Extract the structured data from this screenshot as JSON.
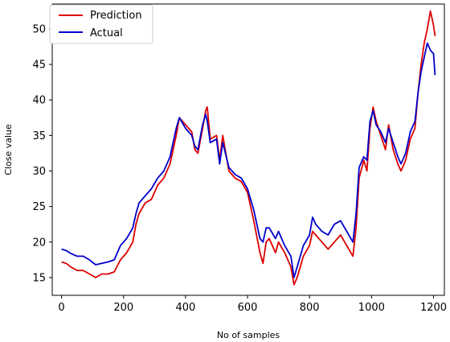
{
  "chart_data": {
    "type": "line",
    "title": "",
    "xlabel": "No of samples",
    "ylabel": "Close value",
    "xlim": [
      -30,
      1235
    ],
    "ylim": [
      12.5,
      53.5
    ],
    "xticks": [
      0,
      200,
      400,
      600,
      800,
      1000,
      1200
    ],
    "yticks": [
      15,
      20,
      25,
      30,
      35,
      40,
      45,
      50
    ],
    "grid": false,
    "legend_position": "top-left",
    "series": [
      {
        "name": "Prediction",
        "color": "#dd0000",
        "points": [
          [
            0,
            17.2
          ],
          [
            15,
            17.0
          ],
          [
            30,
            16.5
          ],
          [
            50,
            16.0
          ],
          [
            70,
            16.0
          ],
          [
            90,
            15.5
          ],
          [
            110,
            15.0
          ],
          [
            130,
            15.5
          ],
          [
            150,
            15.5
          ],
          [
            170,
            15.8
          ],
          [
            190,
            17.5
          ],
          [
            210,
            18.5
          ],
          [
            230,
            20.0
          ],
          [
            240,
            22.5
          ],
          [
            250,
            24.0
          ],
          [
            270,
            25.5
          ],
          [
            290,
            26.0
          ],
          [
            310,
            28.0
          ],
          [
            330,
            29.0
          ],
          [
            350,
            31.0
          ],
          [
            370,
            35.0
          ],
          [
            380,
            37.5
          ],
          [
            400,
            36.5
          ],
          [
            420,
            35.5
          ],
          [
            430,
            33.0
          ],
          [
            440,
            32.5
          ],
          [
            455,
            36.0
          ],
          [
            465,
            38.5
          ],
          [
            470,
            39.0
          ],
          [
            480,
            34.5
          ],
          [
            500,
            35.0
          ],
          [
            510,
            31.5
          ],
          [
            520,
            35.0
          ],
          [
            540,
            30.0
          ],
          [
            560,
            29.0
          ],
          [
            580,
            28.5
          ],
          [
            600,
            27.0
          ],
          [
            620,
            23.0
          ],
          [
            640,
            18.5
          ],
          [
            650,
            17.0
          ],
          [
            660,
            20.0
          ],
          [
            670,
            20.5
          ],
          [
            690,
            18.5
          ],
          [
            700,
            20.0
          ],
          [
            720,
            18.5
          ],
          [
            740,
            16.5
          ],
          [
            750,
            14.0
          ],
          [
            760,
            15.0
          ],
          [
            780,
            18.0
          ],
          [
            800,
            19.5
          ],
          [
            810,
            21.5
          ],
          [
            820,
            21.0
          ],
          [
            840,
            20.0
          ],
          [
            860,
            19.0
          ],
          [
            880,
            20.0
          ],
          [
            900,
            21.0
          ],
          [
            920,
            19.5
          ],
          [
            940,
            18.0
          ],
          [
            950,
            22.0
          ],
          [
            960,
            29.0
          ],
          [
            975,
            31.5
          ],
          [
            985,
            30.0
          ],
          [
            995,
            36.0
          ],
          [
            1005,
            39.0
          ],
          [
            1015,
            37.0
          ],
          [
            1030,
            35.0
          ],
          [
            1045,
            33.0
          ],
          [
            1055,
            36.5
          ],
          [
            1070,
            33.0
          ],
          [
            1085,
            31.0
          ],
          [
            1095,
            30.0
          ],
          [
            1110,
            31.5
          ],
          [
            1125,
            34.5
          ],
          [
            1140,
            36.0
          ],
          [
            1150,
            41.0
          ],
          [
            1160,
            45.0
          ],
          [
            1170,
            48.0
          ],
          [
            1180,
            50.0
          ],
          [
            1190,
            52.5
          ],
          [
            1200,
            50.5
          ],
          [
            1205,
            49.0
          ]
        ]
      },
      {
        "name": "Actual",
        "color": "#0000cc",
        "points": [
          [
            0,
            19.0
          ],
          [
            15,
            18.8
          ],
          [
            30,
            18.4
          ],
          [
            50,
            18.0
          ],
          [
            70,
            18.0
          ],
          [
            90,
            17.5
          ],
          [
            110,
            16.8
          ],
          [
            130,
            17.0
          ],
          [
            150,
            17.2
          ],
          [
            170,
            17.5
          ],
          [
            190,
            19.5
          ],
          [
            210,
            20.5
          ],
          [
            230,
            22.0
          ],
          [
            240,
            24.0
          ],
          [
            250,
            25.5
          ],
          [
            270,
            26.5
          ],
          [
            290,
            27.5
          ],
          [
            310,
            29.0
          ],
          [
            330,
            30.0
          ],
          [
            350,
            32.0
          ],
          [
            370,
            36.0
          ],
          [
            380,
            37.5
          ],
          [
            400,
            36.0
          ],
          [
            420,
            35.0
          ],
          [
            430,
            33.5
          ],
          [
            440,
            33.0
          ],
          [
            455,
            36.5
          ],
          [
            465,
            38.0
          ],
          [
            470,
            37.0
          ],
          [
            480,
            34.0
          ],
          [
            500,
            34.5
          ],
          [
            510,
            31.0
          ],
          [
            520,
            34.0
          ],
          [
            540,
            30.5
          ],
          [
            560,
            29.5
          ],
          [
            580,
            29.0
          ],
          [
            600,
            27.5
          ],
          [
            620,
            24.5
          ],
          [
            640,
            20.5
          ],
          [
            650,
            20.0
          ],
          [
            660,
            22.0
          ],
          [
            670,
            22.0
          ],
          [
            690,
            20.5
          ],
          [
            700,
            21.5
          ],
          [
            720,
            19.5
          ],
          [
            740,
            18.0
          ],
          [
            750,
            15.0
          ],
          [
            760,
            16.5
          ],
          [
            780,
            19.5
          ],
          [
            800,
            21.0
          ],
          [
            810,
            23.5
          ],
          [
            820,
            22.5
          ],
          [
            840,
            21.5
          ],
          [
            860,
            21.0
          ],
          [
            880,
            22.5
          ],
          [
            900,
            23.0
          ],
          [
            920,
            21.5
          ],
          [
            940,
            20.0
          ],
          [
            950,
            24.0
          ],
          [
            960,
            30.5
          ],
          [
            975,
            32.0
          ],
          [
            985,
            31.5
          ],
          [
            995,
            37.0
          ],
          [
            1005,
            38.5
          ],
          [
            1015,
            36.5
          ],
          [
            1030,
            35.5
          ],
          [
            1045,
            34.0
          ],
          [
            1055,
            36.0
          ],
          [
            1070,
            34.0
          ],
          [
            1085,
            32.0
          ],
          [
            1095,
            31.0
          ],
          [
            1110,
            32.5
          ],
          [
            1125,
            35.5
          ],
          [
            1140,
            37.0
          ],
          [
            1150,
            41.0
          ],
          [
            1160,
            44.0
          ],
          [
            1170,
            46.0
          ],
          [
            1180,
            48.0
          ],
          [
            1190,
            47.0
          ],
          [
            1200,
            46.5
          ],
          [
            1205,
            43.5
          ]
        ]
      }
    ]
  }
}
